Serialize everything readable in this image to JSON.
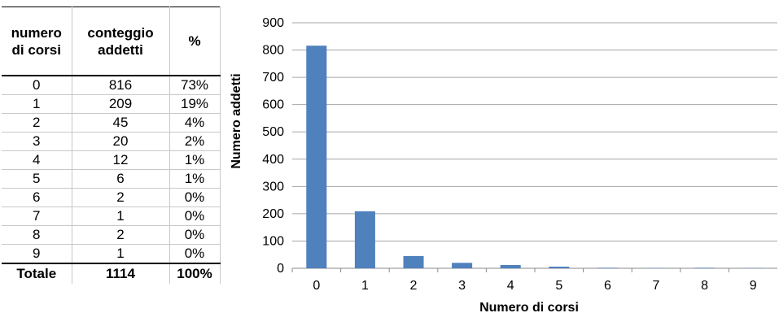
{
  "table": {
    "headers": [
      "numero di corsi",
      "conteggio addetti",
      "%"
    ],
    "rows": [
      [
        "0",
        "816",
        "73%"
      ],
      [
        "1",
        "209",
        "19%"
      ],
      [
        "2",
        "45",
        "4%"
      ],
      [
        "3",
        "20",
        "2%"
      ],
      [
        "4",
        "12",
        "1%"
      ],
      [
        "5",
        "6",
        "1%"
      ],
      [
        "6",
        "2",
        "0%"
      ],
      [
        "7",
        "1",
        "0%"
      ],
      [
        "8",
        "2",
        "0%"
      ],
      [
        "9",
        "1",
        "0%"
      ]
    ],
    "total": [
      "Totale",
      "1114",
      "100%"
    ]
  },
  "chart_data": {
    "type": "bar",
    "categories": [
      "0",
      "1",
      "2",
      "3",
      "4",
      "5",
      "6",
      "7",
      "8",
      "9"
    ],
    "values": [
      816,
      209,
      45,
      20,
      12,
      6,
      2,
      1,
      2,
      1
    ],
    "title": "",
    "xlabel": "Numero di corsi",
    "ylabel": "Numero addetti",
    "ylim": [
      0,
      900
    ],
    "yticks": [
      0,
      100,
      200,
      300,
      400,
      500,
      600,
      700,
      800,
      900
    ],
    "grid": true,
    "legend": "none",
    "bar_color": "#4f81bd",
    "grid_color": "#a6a6a6"
  }
}
